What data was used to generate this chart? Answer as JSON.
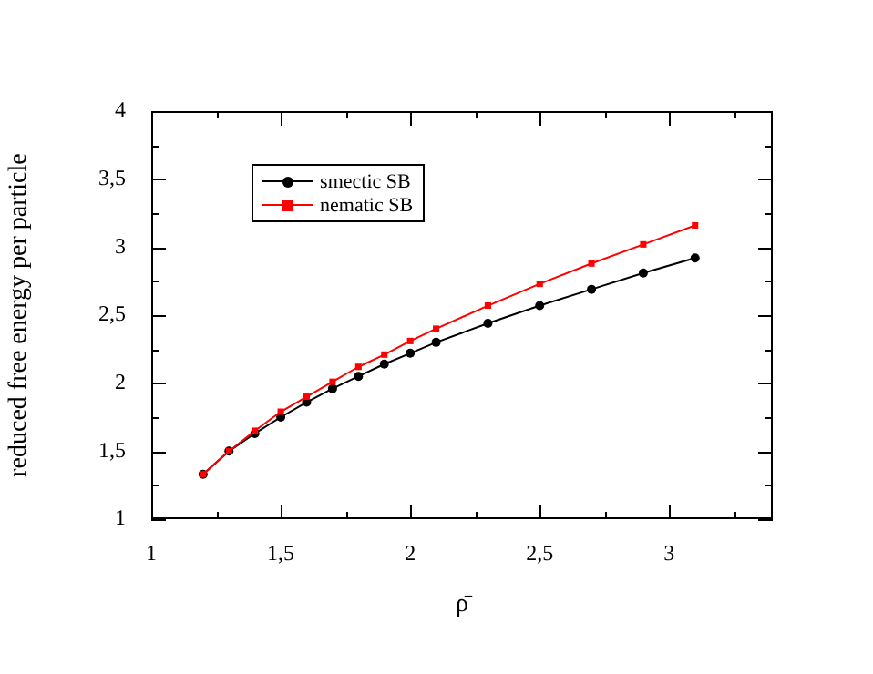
{
  "chart_data": {
    "type": "line",
    "xlabel": "ρ̄",
    "ylabel": "reduced free energy per particle",
    "x": [
      1.2,
      1.3,
      1.4,
      1.5,
      1.6,
      1.7,
      1.8,
      1.9,
      2.0,
      2.1,
      2.3,
      2.5,
      2.7,
      2.9,
      3.1
    ],
    "series": [
      {
        "name": "smectic SB",
        "color": "#000000",
        "marker": "circle",
        "values": [
          1.33,
          1.5,
          1.63,
          1.75,
          1.86,
          1.96,
          2.05,
          2.14,
          2.22,
          2.3,
          2.44,
          2.57,
          2.69,
          2.81,
          2.92
        ]
      },
      {
        "name": "nematic SB",
        "color": "#ff0000",
        "marker": "square",
        "values": [
          1.33,
          1.5,
          1.65,
          1.79,
          1.9,
          2.01,
          2.12,
          2.21,
          2.31,
          2.4,
          2.57,
          2.73,
          2.88,
          3.02,
          3.16
        ]
      }
    ],
    "xlim": [
      1,
      3.4
    ],
    "xticks": [
      {
        "value": 1,
        "label": "1"
      },
      {
        "value": 1.25,
        "label": null
      },
      {
        "value": 1.5,
        "label": "1,5"
      },
      {
        "value": 1.75,
        "label": null
      },
      {
        "value": 2,
        "label": "2"
      },
      {
        "value": 2.25,
        "label": null
      },
      {
        "value": 2.5,
        "label": "2,5"
      },
      {
        "value": 2.75,
        "label": null
      },
      {
        "value": 3,
        "label": "3"
      },
      {
        "value": 3.25,
        "label": null
      }
    ],
    "ylim": [
      1,
      4
    ],
    "yticks": [
      {
        "value": 1,
        "label": "1"
      },
      {
        "value": 1.25,
        "label": null
      },
      {
        "value": 1.5,
        "label": "1,5"
      },
      {
        "value": 1.75,
        "label": null
      },
      {
        "value": 2,
        "label": "2"
      },
      {
        "value": 2.25,
        "label": null
      },
      {
        "value": 2.5,
        "label": "2,5"
      },
      {
        "value": 2.75,
        "label": null
      },
      {
        "value": 3,
        "label": "3"
      },
      {
        "value": 3.25,
        "label": null
      },
      {
        "value": 3.5,
        "label": "3,5"
      },
      {
        "value": 3.75,
        "label": null
      },
      {
        "value": 4,
        "label": "4"
      }
    ],
    "grid": false,
    "legend": "top left",
    "line_style": "solid"
  }
}
